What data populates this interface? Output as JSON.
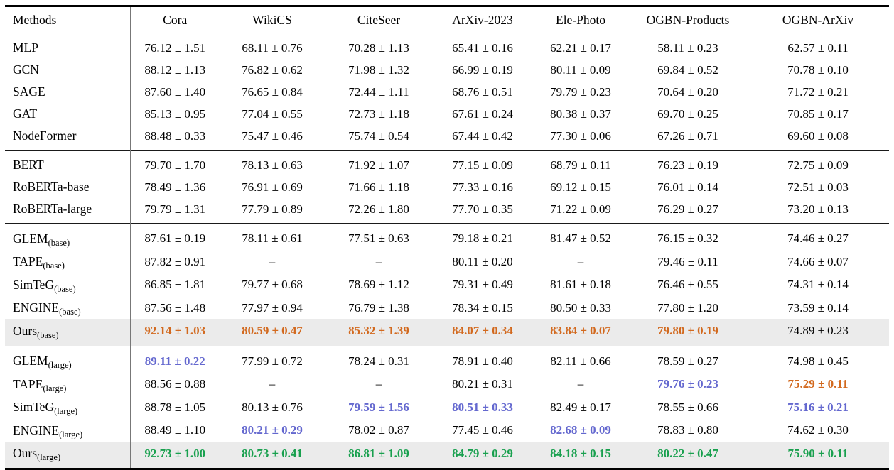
{
  "colors": {
    "best": "#18a04e",
    "second": "#d2691e",
    "third": "#6468cf",
    "highlight_row_bg": "#ebebeb"
  },
  "table": {
    "header": [
      "Methods",
      "Cora",
      "WikiCS",
      "CiteSeer",
      "ArXiv-2023",
      "Ele-Photo",
      "OGBN-Products",
      "OGBN-ArXiv"
    ],
    "sections": [
      {
        "rows": [
          {
            "method": "MLP",
            "subscript": "",
            "highlight": false,
            "values": [
              {
                "text": "76.12 ± 1.51",
                "style": "plain"
              },
              {
                "text": "68.11 ± 0.76",
                "style": "plain"
              },
              {
                "text": "70.28 ± 1.13",
                "style": "plain"
              },
              {
                "text": "65.41 ± 0.16",
                "style": "plain"
              },
              {
                "text": "62.21 ± 0.17",
                "style": "plain"
              },
              {
                "text": "58.11 ± 0.23",
                "style": "plain"
              },
              {
                "text": "62.57 ± 0.11",
                "style": "plain"
              }
            ]
          },
          {
            "method": "GCN",
            "subscript": "",
            "highlight": false,
            "values": [
              {
                "text": "88.12 ± 1.13",
                "style": "plain"
              },
              {
                "text": "76.82 ± 0.62",
                "style": "plain"
              },
              {
                "text": "71.98 ± 1.32",
                "style": "plain"
              },
              {
                "text": "66.99 ± 0.19",
                "style": "plain"
              },
              {
                "text": "80.11 ± 0.09",
                "style": "plain"
              },
              {
                "text": "69.84 ± 0.52",
                "style": "plain"
              },
              {
                "text": "70.78 ± 0.10",
                "style": "plain"
              }
            ]
          },
          {
            "method": "SAGE",
            "subscript": "",
            "highlight": false,
            "values": [
              {
                "text": "87.60 ± 1.40",
                "style": "plain"
              },
              {
                "text": "76.65 ± 0.84",
                "style": "plain"
              },
              {
                "text": "72.44 ± 1.11",
                "style": "plain"
              },
              {
                "text": "68.76 ± 0.51",
                "style": "plain"
              },
              {
                "text": "79.79 ± 0.23",
                "style": "plain"
              },
              {
                "text": "70.64 ± 0.20",
                "style": "plain"
              },
              {
                "text": "71.72 ± 0.21",
                "style": "plain"
              }
            ]
          },
          {
            "method": "GAT",
            "subscript": "",
            "highlight": false,
            "values": [
              {
                "text": "85.13 ± 0.95",
                "style": "plain"
              },
              {
                "text": "77.04 ± 0.55",
                "style": "plain"
              },
              {
                "text": "72.73 ± 1.18",
                "style": "plain"
              },
              {
                "text": "67.61 ± 0.24",
                "style": "plain"
              },
              {
                "text": "80.38 ± 0.37",
                "style": "plain"
              },
              {
                "text": "69.70 ± 0.25",
                "style": "plain"
              },
              {
                "text": "70.85 ± 0.17",
                "style": "plain"
              }
            ]
          },
          {
            "method": "NodeFormer",
            "subscript": "",
            "highlight": false,
            "values": [
              {
                "text": "88.48 ± 0.33",
                "style": "plain"
              },
              {
                "text": "75.47 ± 0.46",
                "style": "plain"
              },
              {
                "text": "75.74 ± 0.54",
                "style": "plain"
              },
              {
                "text": "67.44 ± 0.42",
                "style": "plain"
              },
              {
                "text": "77.30 ± 0.06",
                "style": "plain"
              },
              {
                "text": "67.26 ± 0.71",
                "style": "plain"
              },
              {
                "text": "69.60 ± 0.08",
                "style": "plain"
              }
            ]
          }
        ]
      },
      {
        "rows": [
          {
            "method": "BERT",
            "subscript": "",
            "highlight": false,
            "values": [
              {
                "text": "79.70 ± 1.70",
                "style": "plain"
              },
              {
                "text": "78.13 ± 0.63",
                "style": "plain"
              },
              {
                "text": "71.92 ± 1.07",
                "style": "plain"
              },
              {
                "text": "77.15 ± 0.09",
                "style": "plain"
              },
              {
                "text": "68.79 ± 0.11",
                "style": "plain"
              },
              {
                "text": "76.23 ± 0.19",
                "style": "plain"
              },
              {
                "text": "72.75 ± 0.09",
                "style": "plain"
              }
            ]
          },
          {
            "method": "RoBERTa-base",
            "subscript": "",
            "highlight": false,
            "values": [
              {
                "text": "78.49 ± 1.36",
                "style": "plain"
              },
              {
                "text": "76.91 ± 0.69",
                "style": "plain"
              },
              {
                "text": "71.66 ± 1.18",
                "style": "plain"
              },
              {
                "text": "77.33 ± 0.16",
                "style": "plain"
              },
              {
                "text": "69.12 ± 0.15",
                "style": "plain"
              },
              {
                "text": "76.01 ± 0.14",
                "style": "plain"
              },
              {
                "text": "72.51 ± 0.03",
                "style": "plain"
              }
            ]
          },
          {
            "method": "RoBERTa-large",
            "subscript": "",
            "highlight": false,
            "values": [
              {
                "text": "79.79 ± 1.31",
                "style": "plain"
              },
              {
                "text": "77.79 ± 0.89",
                "style": "plain"
              },
              {
                "text": "72.26 ± 1.80",
                "style": "plain"
              },
              {
                "text": "77.70 ± 0.35",
                "style": "plain"
              },
              {
                "text": "71.22 ± 0.09",
                "style": "plain"
              },
              {
                "text": "76.29 ± 0.27",
                "style": "plain"
              },
              {
                "text": "73.20 ± 0.13",
                "style": "plain"
              }
            ]
          }
        ]
      },
      {
        "rows": [
          {
            "method": "GLEM",
            "subscript": "(base)",
            "highlight": false,
            "values": [
              {
                "text": "87.61 ± 0.19",
                "style": "plain"
              },
              {
                "text": "78.11 ± 0.61",
                "style": "plain"
              },
              {
                "text": "77.51 ± 0.63",
                "style": "plain"
              },
              {
                "text": "79.18 ± 0.21",
                "style": "plain"
              },
              {
                "text": "81.47 ± 0.52",
                "style": "plain"
              },
              {
                "text": "76.15 ± 0.32",
                "style": "plain"
              },
              {
                "text": "74.46 ± 0.27",
                "style": "plain"
              }
            ]
          },
          {
            "method": "TAPE",
            "subscript": "(base)",
            "highlight": false,
            "values": [
              {
                "text": "87.82 ± 0.91",
                "style": "plain"
              },
              {
                "text": "–",
                "style": "dash"
              },
              {
                "text": "–",
                "style": "dash"
              },
              {
                "text": "80.11 ± 0.20",
                "style": "plain"
              },
              {
                "text": "–",
                "style": "dash"
              },
              {
                "text": "79.46 ± 0.11",
                "style": "plain"
              },
              {
                "text": "74.66 ± 0.07",
                "style": "plain"
              }
            ]
          },
          {
            "method": "SimTeG",
            "subscript": "(base)",
            "highlight": false,
            "values": [
              {
                "text": "86.85 ± 1.81",
                "style": "plain"
              },
              {
                "text": "79.77 ± 0.68",
                "style": "plain"
              },
              {
                "text": "78.69 ± 1.12",
                "style": "plain"
              },
              {
                "text": "79.31 ± 0.49",
                "style": "plain"
              },
              {
                "text": "81.61 ± 0.18",
                "style": "plain"
              },
              {
                "text": "76.46 ± 0.55",
                "style": "plain"
              },
              {
                "text": "74.31 ± 0.14",
                "style": "plain"
              }
            ]
          },
          {
            "method": "ENGINE",
            "subscript": "(base)",
            "highlight": false,
            "values": [
              {
                "text": "87.56 ± 1.48",
                "style": "plain"
              },
              {
                "text": "77.97 ± 0.94",
                "style": "plain"
              },
              {
                "text": "76.79 ± 1.38",
                "style": "plain"
              },
              {
                "text": "78.34 ± 0.15",
                "style": "plain"
              },
              {
                "text": "80.50 ± 0.33",
                "style": "plain"
              },
              {
                "text": "77.80 ± 1.20",
                "style": "plain"
              },
              {
                "text": "73.59 ± 0.14",
                "style": "plain"
              }
            ]
          },
          {
            "method": "Ours",
            "subscript": "(base)",
            "highlight": true,
            "values": [
              {
                "text": "92.14 ± 1.03",
                "style": "second"
              },
              {
                "text": "80.59 ± 0.47",
                "style": "second"
              },
              {
                "text": "85.32 ± 1.39",
                "style": "second"
              },
              {
                "text": "84.07 ± 0.34",
                "style": "second"
              },
              {
                "text": "83.84 ± 0.07",
                "style": "second"
              },
              {
                "text": "79.80 ± 0.19",
                "style": "second"
              },
              {
                "text": "74.89 ± 0.23",
                "style": "plain"
              }
            ]
          }
        ]
      },
      {
        "rows": [
          {
            "method": "GLEM",
            "subscript": "(large)",
            "highlight": false,
            "values": [
              {
                "text": "89.11 ± 0.22",
                "style": "third"
              },
              {
                "text": "77.99 ± 0.72",
                "style": "plain"
              },
              {
                "text": "78.24 ± 0.31",
                "style": "plain"
              },
              {
                "text": "78.91 ± 0.40",
                "style": "plain"
              },
              {
                "text": "82.11 ± 0.66",
                "style": "plain"
              },
              {
                "text": "78.59 ± 0.27",
                "style": "plain"
              },
              {
                "text": "74.98 ± 0.45",
                "style": "plain"
              }
            ]
          },
          {
            "method": "TAPE",
            "subscript": "(large)",
            "highlight": false,
            "values": [
              {
                "text": "88.56 ± 0.88",
                "style": "plain"
              },
              {
                "text": "–",
                "style": "dash"
              },
              {
                "text": "–",
                "style": "dash"
              },
              {
                "text": "80.21 ± 0.31",
                "style": "plain"
              },
              {
                "text": "–",
                "style": "dash"
              },
              {
                "text": "79.76 ± 0.23",
                "style": "third"
              },
              {
                "text": "75.29 ± 0.11",
                "style": "second"
              }
            ]
          },
          {
            "method": "SimTeG",
            "subscript": "(large)",
            "highlight": false,
            "values": [
              {
                "text": "88.78 ± 1.05",
                "style": "plain"
              },
              {
                "text": "80.13 ± 0.76",
                "style": "plain"
              },
              {
                "text": "79.59 ± 1.56",
                "style": "third"
              },
              {
                "text": "80.51 ± 0.33",
                "style": "third"
              },
              {
                "text": "82.49 ± 0.17",
                "style": "plain"
              },
              {
                "text": "78.55 ± 0.66",
                "style": "plain"
              },
              {
                "text": "75.16 ± 0.21",
                "style": "third"
              }
            ]
          },
          {
            "method": "ENGINE",
            "subscript": "(large)",
            "highlight": false,
            "values": [
              {
                "text": "88.49 ± 1.10",
                "style": "plain"
              },
              {
                "text": "80.21 ± 0.29",
                "style": "third"
              },
              {
                "text": "78.02 ± 0.87",
                "style": "plain"
              },
              {
                "text": "77.45 ± 0.46",
                "style": "plain"
              },
              {
                "text": "82.68 ± 0.09",
                "style": "third"
              },
              {
                "text": "78.83 ± 0.80",
                "style": "plain"
              },
              {
                "text": "74.62 ± 0.30",
                "style": "plain"
              }
            ]
          },
          {
            "method": "Ours",
            "subscript": "(large)",
            "highlight": true,
            "values": [
              {
                "text": "92.73 ± 1.00",
                "style": "best"
              },
              {
                "text": "80.73 ± 0.41",
                "style": "best"
              },
              {
                "text": "86.81 ± 1.09",
                "style": "best"
              },
              {
                "text": "84.79 ± 0.29",
                "style": "best"
              },
              {
                "text": "84.18 ± 0.15",
                "style": "best"
              },
              {
                "text": "80.22 ± 0.47",
                "style": "best"
              },
              {
                "text": "75.90 ± 0.11",
                "style": "best"
              }
            ]
          }
        ]
      }
    ]
  }
}
